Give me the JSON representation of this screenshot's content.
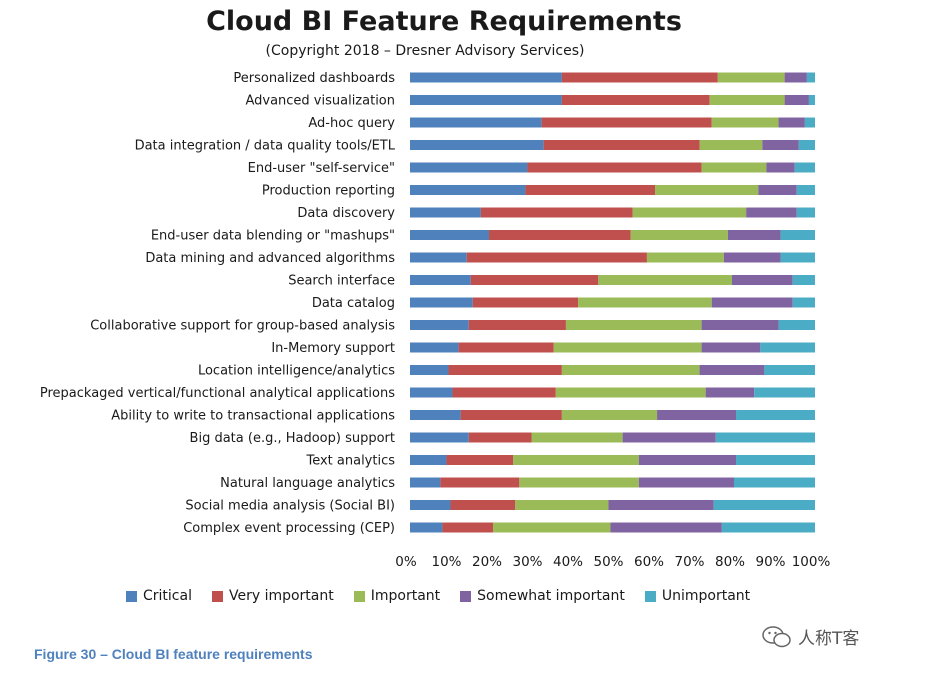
{
  "chart_data": {
    "type": "bar",
    "orientation": "horizontal",
    "stacked": "percent",
    "title": "Cloud BI Feature Requirements",
    "subtitle": "(Copyright 2018 – Dresner Advisory Services)",
    "categories": [
      "Personalized dashboards",
      "Advanced visualization",
      "Ad-hoc query",
      "Data integration / data quality tools/ETL",
      "End-user \"self-service\"",
      "Production reporting",
      "Data discovery",
      "End-user data blending or \"mashups\"",
      "Data mining and advanced algorithms",
      "Search interface",
      "Data catalog",
      "Collaborative support for group-based analysis",
      "In-Memory support",
      "Location intelligence/analytics",
      "Prepackaged vertical/functional analytical applications",
      "Ability to write to transactional applications",
      "Big data (e.g., Hadoop) support",
      "Text analytics",
      "Natural language analytics",
      "Social media analysis (Social BI)",
      "Complex event processing (CEP)"
    ],
    "series": [
      {
        "name": "Critical",
        "color": "#4f81bd",
        "values": [
          37.5,
          37.5,
          32.5,
          33,
          29,
          28.5,
          17.5,
          19.5,
          14,
          15,
          15.5,
          14.5,
          12,
          9.5,
          10.5,
          12.5,
          14.5,
          9,
          7.5,
          10,
          8
        ]
      },
      {
        "name": "Very important",
        "color": "#c0504d",
        "values": [
          38.5,
          36.5,
          42,
          38.5,
          43,
          32,
          37.5,
          35,
          44.5,
          31.5,
          26,
          24,
          23.5,
          28,
          25.5,
          25,
          15.5,
          16.5,
          19.5,
          16,
          12.5
        ]
      },
      {
        "name": "Important",
        "color": "#9bbb59",
        "values": [
          16.5,
          18.5,
          16.5,
          15.5,
          16,
          25.5,
          28,
          24,
          19,
          33,
          33,
          33.5,
          36.5,
          34,
          37,
          23.5,
          22.5,
          31,
          29.5,
          23,
          29
        ]
      },
      {
        "name": "Somewhat important",
        "color": "#8064a2",
        "values": [
          5.5,
          6,
          6.5,
          9,
          7,
          9.5,
          12.5,
          13,
          14,
          15,
          20,
          19,
          14.5,
          16,
          12,
          19.5,
          23,
          24,
          23.5,
          26,
          27.5
        ]
      },
      {
        "name": "Unimportant",
        "color": "#4bacc6",
        "values": [
          2,
          1.5,
          2.5,
          4,
          5,
          4.5,
          4.5,
          8.5,
          8.5,
          5.5,
          5.5,
          9,
          13.5,
          12.5,
          15,
          19.5,
          24.5,
          19.5,
          20,
          25,
          23
        ]
      }
    ],
    "x_ticks": [
      "0%",
      "10%",
      "20%",
      "30%",
      "40%",
      "50%",
      "60%",
      "70%",
      "80%",
      "90%",
      "100%"
    ],
    "xlim": [
      0,
      100
    ],
    "grid": false,
    "legend_position": "bottom"
  },
  "caption": "Figure 30 – Cloud BI feature requirements",
  "watermark": "人称T客"
}
